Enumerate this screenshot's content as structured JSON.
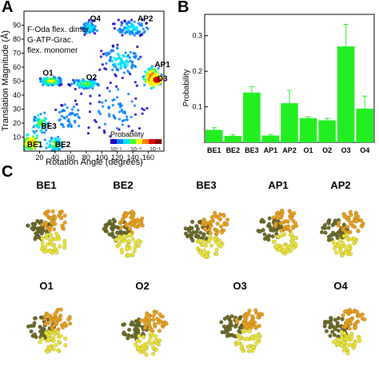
{
  "panels": {
    "a": "A",
    "b": "B",
    "c": "C"
  },
  "heatmap": {
    "xlabel": "Rotation Angle (degrees)",
    "ylabel": "Translation Magnitude (Å)",
    "xticks": [
      20,
      40,
      60,
      80,
      100,
      120,
      140,
      160
    ],
    "yticks": [
      10,
      20,
      30,
      40,
      50,
      60,
      70,
      80,
      90
    ],
    "xlim": [
      0,
      180
    ],
    "ylim": [
      0,
      100
    ],
    "legend_lines": [
      "F-Oda flex. dimer",
      "G-ATP-Grac.",
      "flex. monomer"
    ],
    "colorbar_title": "Probability",
    "colorbar_ticks": [
      "10⁻⁵",
      "10⁻³",
      "10⁻¹"
    ],
    "colors": [
      "#1a00c8",
      "#0080ff",
      "#00e0ff",
      "#40ff40",
      "#ffff00",
      "#ff8000",
      "#e00000",
      "#800000"
    ],
    "state_labels": [
      {
        "name": "O4",
        "x": 85,
        "y": 93
      },
      {
        "name": "AP2",
        "x": 146,
        "y": 93
      },
      {
        "name": "AP1",
        "x": 168,
        "y": 60
      },
      {
        "name": "O3",
        "x": 171,
        "y": 50
      },
      {
        "name": "O1",
        "x": 24,
        "y": 54
      },
      {
        "name": "O2",
        "x": 80,
        "y": 51
      },
      {
        "name": "BE3",
        "x": 22,
        "y": 16
      },
      {
        "name": "BE1",
        "x": 4,
        "y": 3
      },
      {
        "name": "BE2",
        "x": 40,
        "y": 3
      }
    ]
  },
  "chart_data": {
    "type": "bar",
    "categories": [
      "BE1",
      "BE2",
      "BE3",
      "AP1",
      "AP2",
      "O1",
      "O2",
      "O3",
      "O4"
    ],
    "values": [
      0.035,
      0.018,
      0.14,
      0.019,
      0.11,
      0.068,
      0.062,
      0.27,
      0.095
    ],
    "errors": [
      0.006,
      0.003,
      0.017,
      0.003,
      0.036,
      0.004,
      0.005,
      0.062,
      0.035
    ],
    "xlabel": "",
    "ylabel": "Probability",
    "ylim": [
      0,
      0.36
    ],
    "yticks": [
      "0.1",
      "0.2",
      "0.3"
    ],
    "bar_color": "#22ee22"
  },
  "structures": {
    "row1": [
      "BE1",
      "BE2",
      "BE3",
      "AP1",
      "AP2"
    ],
    "row2": [
      "O1",
      "O2",
      "O3",
      "O4"
    ],
    "colors": {
      "dark": "#6b6a2a",
      "orange": "#e5a020",
      "yellow": "#e8e23a"
    }
  }
}
